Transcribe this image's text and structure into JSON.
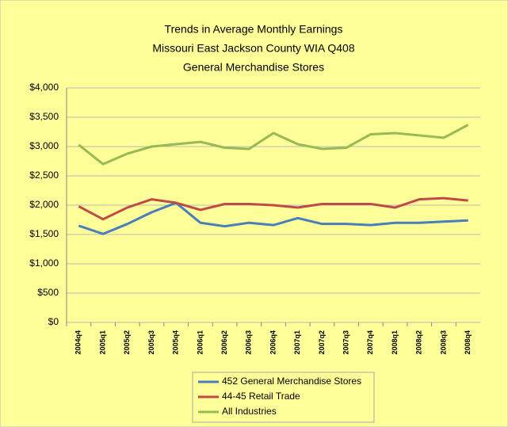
{
  "chart_data": {
    "type": "line",
    "title": [
      "Trends in Average Monthly Earnings",
      "Missouri East Jackson County WIA Q408",
      "General Merchandise Stores"
    ],
    "categories": [
      "2004q4",
      "2005q1",
      "2005q2",
      "2005q3",
      "2005q4",
      "2006q1",
      "2006q2",
      "2006q3",
      "2006q4",
      "2007q1",
      "2007q2",
      "2007q3",
      "2007q4",
      "2008q1",
      "2008q2",
      "2008q3",
      "2008q4"
    ],
    "series": [
      {
        "name": "452 General Merchandise Stores",
        "color": "#4a7ebb",
        "values": [
          1650,
          1510,
          1680,
          1880,
          2040,
          1700,
          1640,
          1700,
          1660,
          1780,
          1680,
          1680,
          1660,
          1700,
          1700,
          1720,
          1740
        ]
      },
      {
        "name": "44-45 Retail Trade",
        "color": "#be4b48",
        "values": [
          1980,
          1760,
          1960,
          2100,
          2040,
          1920,
          2020,
          2020,
          2000,
          1960,
          2020,
          2020,
          2020,
          1960,
          2100,
          2120,
          2080
        ]
      },
      {
        "name": "All Industries",
        "color": "#98b954",
        "values": [
          3030,
          2700,
          2880,
          3000,
          3040,
          3080,
          2980,
          2960,
          3230,
          3040,
          2960,
          2980,
          3210,
          3230,
          3190,
          3150,
          3370
        ]
      }
    ],
    "ylim": [
      0,
      4000
    ],
    "yticks": [
      {
        "value": 0,
        "label": "$0"
      },
      {
        "value": 500,
        "label": "$500"
      },
      {
        "value": 1000,
        "label": "$1,000"
      },
      {
        "value": 1500,
        "label": "$1,500"
      },
      {
        "value": 2000,
        "label": "$2,000"
      },
      {
        "value": 2500,
        "label": "$2,500"
      },
      {
        "value": 3000,
        "label": "$3,000"
      },
      {
        "value": 3500,
        "label": "$3,500"
      },
      {
        "value": 4000,
        "label": "$4,000"
      }
    ],
    "grid": true,
    "legend": "bottom"
  }
}
